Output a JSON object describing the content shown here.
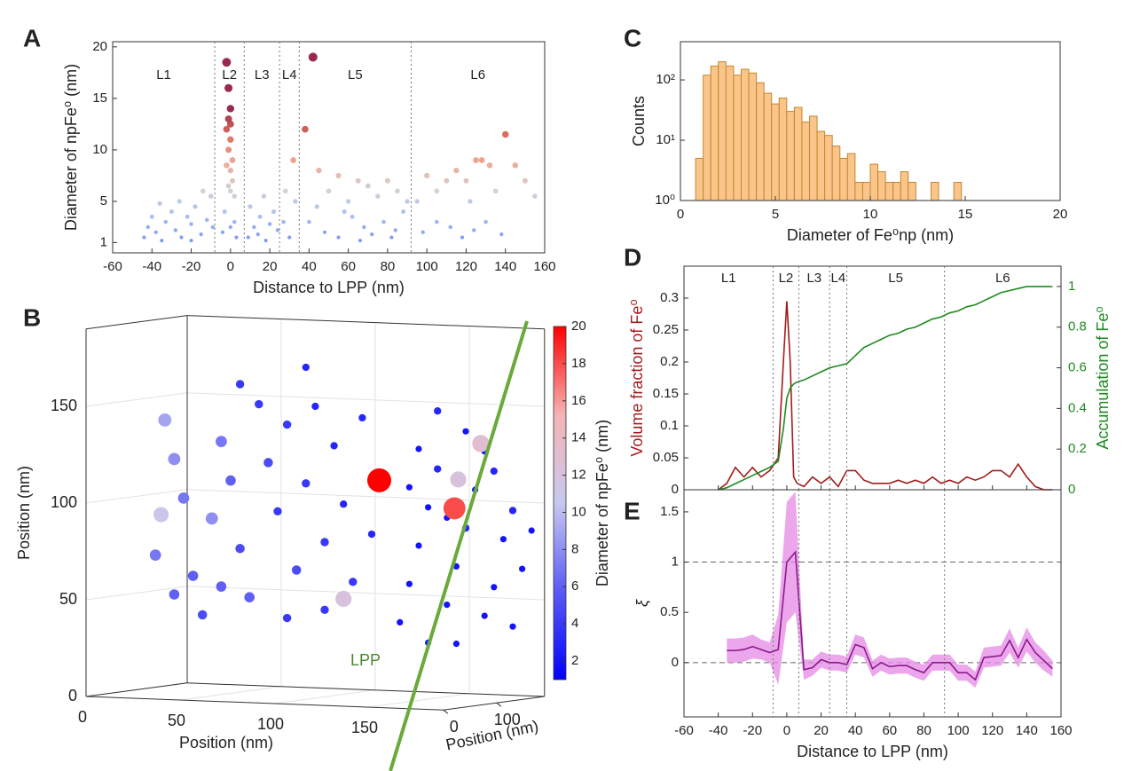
{
  "chart_data": [
    {
      "type": "scatter",
      "panel": "A",
      "xlabel": "Distance to LPP (nm)",
      "ylabel": "Diameter of npFe⁰ (nm)",
      "xlim": [
        -60,
        160
      ],
      "xticks": [
        -60,
        -40,
        -20,
        0,
        20,
        40,
        60,
        80,
        100,
        120,
        140,
        160
      ],
      "ylim": [
        0,
        20.5
      ],
      "yticks": [
        1,
        5,
        10,
        15,
        20
      ],
      "regions": {
        "boundaries": [
          -8,
          7,
          25,
          35,
          92
        ],
        "labels": [
          "L1",
          "L2",
          "L3",
          "L4",
          "L5",
          "L6"
        ]
      },
      "colormap": {
        "colors": [
          "#6a8cf0",
          "#9fb8f2",
          "#cfcfcf",
          "#ee9e8a",
          "#d9614f",
          "#8e1338"
        ],
        "range": [
          1,
          14
        ]
      },
      "x": [
        -44,
        -42,
        -40,
        -38,
        -35,
        -33,
        -30,
        -28,
        -25,
        -22,
        -20,
        -18,
        -15,
        -12,
        -10,
        -9,
        -36,
        -26,
        -14,
        -20,
        -2,
        -1,
        0,
        -1,
        0,
        -2,
        0,
        -1,
        1,
        -2,
        0,
        1,
        -1,
        0,
        2,
        -3,
        2,
        -4,
        3,
        0,
        9,
        12,
        15,
        18,
        20,
        22,
        14,
        24,
        10,
        17,
        27,
        30,
        33,
        28,
        32,
        42,
        38,
        45,
        50,
        55,
        60,
        65,
        70,
        75,
        80,
        85,
        90,
        40,
        48,
        55,
        62,
        68,
        72,
        78,
        84,
        88,
        44,
        58,
        66,
        82,
        95,
        100,
        105,
        110,
        115,
        120,
        125,
        128,
        132,
        140,
        145,
        150,
        155,
        98,
        105,
        112,
        118,
        124,
        130,
        138,
        122,
        135
      ],
      "y": [
        1.5,
        2.5,
        3.5,
        2,
        1.2,
        3,
        4,
        2.2,
        1.5,
        3.5,
        2.8,
        4.5,
        1.8,
        3.2,
        5.5,
        2.5,
        4.8,
        5,
        6,
        1.2,
        18.5,
        16,
        14,
        13,
        12.5,
        12,
        11,
        10,
        9,
        8.5,
        8,
        7,
        6.5,
        6,
        5.5,
        4,
        3,
        2,
        1.5,
        2.5,
        1.5,
        2.5,
        3.5,
        1.2,
        2.8,
        4,
        1.8,
        2.2,
        4.5,
        5.5,
        3,
        1.5,
        5,
        6,
        9,
        19,
        12,
        8,
        6,
        7.5,
        5,
        7,
        6.5,
        5.5,
        7,
        6,
        5,
        3,
        2,
        1.5,
        3.5,
        2.5,
        1.8,
        3,
        2.2,
        4,
        4.5,
        4,
        1.2,
        1.5,
        5,
        7.5,
        6,
        7,
        8,
        7,
        9,
        9,
        8.5,
        11.5,
        8.5,
        7,
        5.5,
        2,
        3,
        2.5,
        1.5,
        2.2,
        3,
        1.8,
        5,
        6
      ]
    },
    {
      "type": "scatter3d",
      "panel": "B",
      "xlabel": "Position (nm)",
      "ylabel": "Position (nm)",
      "zlabel": "Position (nm)",
      "xlim": [
        0,
        190
      ],
      "xticks": [
        0,
        50,
        100,
        150
      ],
      "ylim": [
        0,
        190
      ],
      "yticks": [
        0,
        100
      ],
      "zlim": [
        0,
        190
      ],
      "zticks": [
        0,
        50,
        100,
        150
      ],
      "annotation": "LPP",
      "colorbar": {
        "label": "Diameter of npFe⁰ (nm)",
        "clim": [
          1,
          20
        ],
        "ticks": [
          2,
          4,
          6,
          8,
          10,
          12,
          14,
          16,
          18,
          20
        ],
        "colors": [
          "#0000ff",
          "#5a5af5",
          "#c8c8f0",
          "#f5b4b4",
          "#ff0000"
        ]
      },
      "x": [
        15,
        20,
        25,
        10,
        30,
        40,
        45,
        50,
        55,
        60,
        70,
        75,
        80,
        85,
        90,
        95,
        100,
        105,
        110,
        115,
        120,
        125,
        35,
        65,
        90,
        20,
        55,
        100,
        80,
        45,
        140,
        145,
        150,
        155,
        160,
        165,
        170,
        175,
        180,
        185,
        150,
        160,
        145,
        170,
        190,
        195,
        200,
        205,
        200,
        185,
        155,
        165,
        175,
        190,
        210,
        129,
        169,
        13,
        110,
        183,
        171
      ],
      "z": [
        140,
        120,
        100,
        70,
        60,
        90,
        130,
        110,
        75,
        50,
        120,
        95,
        140,
        65,
        110,
        150,
        80,
        130,
        100,
        60,
        145,
        85,
        40,
        150,
        170,
        50,
        160,
        45,
        40,
        55,
        40,
        60,
        80,
        100,
        120,
        50,
        70,
        90,
        110,
        130,
        130,
        150,
        110,
        30,
        60,
        85,
        100,
        70,
        40,
        45,
        30,
        95,
        140,
        120,
        90,
        113,
        100,
        91,
        51,
        134,
        115
      ],
      "size": [
        9,
        8,
        7,
        7,
        6,
        8,
        7,
        6,
        5,
        6,
        5,
        4,
        4,
        5,
        4,
        3,
        4,
        3,
        3,
        4,
        3,
        3,
        5,
        4,
        3,
        6,
        4,
        4,
        4,
        6,
        2,
        2,
        2,
        2,
        3,
        2,
        2,
        3,
        2,
        2,
        2,
        3,
        2,
        2,
        2,
        2,
        3,
        2,
        2,
        2,
        2,
        2,
        2,
        3,
        2,
        20,
        18,
        11,
        12,
        13,
        12
      ]
    },
    {
      "type": "histogram",
      "panel": "C",
      "xlabel": "Diameter of Fe⁰np (nm)",
      "ylabel": "Counts",
      "color": "#f9c58a",
      "edge_color": "#c8862a",
      "bins": [
        0.8,
        1.2,
        1.6,
        2,
        2.4,
        2.8,
        3.2,
        3.6,
        4,
        4.4,
        4.8,
        5.2,
        5.6,
        6,
        6.4,
        6.8,
        7.2,
        7.6,
        8,
        8.4,
        8.8,
        9.2,
        9.6,
        10,
        10.4,
        10.8,
        11.2,
        11.6,
        12,
        12.4,
        12.8,
        13.2,
        13.6,
        14,
        14.4,
        14.8,
        15.2,
        15.6,
        16,
        16.4,
        16.8,
        17.2,
        17.6,
        18,
        18.4,
        18.8,
        19.2
      ],
      "counts": [
        5,
        120,
        170,
        200,
        170,
        120,
        150,
        130,
        90,
        60,
        40,
        50,
        30,
        35,
        20,
        25,
        14,
        12,
        8,
        5,
        6,
        2,
        2,
        4,
        3,
        2,
        2,
        3,
        2,
        1,
        1,
        2,
        1,
        1,
        2,
        0,
        0,
        1,
        0,
        0,
        0,
        0,
        0,
        0,
        0,
        1,
        1
      ],
      "xlim": [
        0,
        20
      ],
      "xticks": [
        0,
        5,
        10,
        15,
        20
      ],
      "log_y": true,
      "ylim": [
        1,
        430
      ],
      "yticks": [
        {
          "value": 1,
          "label": "10⁰"
        },
        {
          "value": 10,
          "label": "10¹"
        },
        {
          "value": 100,
          "label": "10²"
        }
      ]
    },
    {
      "type": "line",
      "panel": "D",
      "xtick_labels": false,
      "x": [
        -40,
        -35,
        -30,
        -25,
        -20,
        -15,
        -10,
        -5,
        -2,
        0,
        2,
        4,
        6,
        10,
        15,
        20,
        25,
        30,
        35,
        40,
        45,
        50,
        55,
        60,
        65,
        70,
        75,
        80,
        85,
        90,
        95,
        100,
        105,
        110,
        115,
        120,
        125,
        130,
        135,
        140,
        145,
        150,
        155
      ],
      "series": [
        {
          "name": "Volume fraction of Fe⁰",
          "color": "#a01c1c",
          "values": [
            0,
            0.01,
            0.035,
            0.02,
            0.035,
            0.02,
            0.03,
            0.05,
            0.2,
            0.295,
            0.2,
            0.02,
            0.01,
            0.005,
            0.02,
            0.01,
            0.02,
            0.005,
            0.03,
            0.03,
            0.015,
            0.01,
            0.01,
            0.01,
            0.015,
            0.01,
            0.015,
            0.01,
            0.02,
            0.01,
            0.015,
            0.01,
            0.02,
            0.015,
            0.02,
            0.03,
            0.03,
            0.02,
            0.04,
            0.02,
            0.005,
            0,
            0
          ]
        },
        {
          "name": "Accumulation of Fe⁰",
          "color": "#1e8a1e",
          "axis": "y2",
          "values": [
            0,
            0.01,
            0.03,
            0.05,
            0.07,
            0.09,
            0.11,
            0.14,
            0.3,
            0.45,
            0.5,
            0.52,
            0.53,
            0.54,
            0.56,
            0.58,
            0.6,
            0.61,
            0.62,
            0.66,
            0.7,
            0.72,
            0.74,
            0.76,
            0.77,
            0.79,
            0.8,
            0.82,
            0.84,
            0.85,
            0.87,
            0.88,
            0.9,
            0.91,
            0.93,
            0.95,
            0.97,
            0.98,
            0.99,
            1.0,
            1.0,
            1.0,
            1.0
          ]
        }
      ],
      "xlim": [
        -60,
        160
      ],
      "xticks": [
        -60,
        -40,
        -20,
        0,
        20,
        40,
        60,
        80,
        100,
        120,
        140,
        160
      ],
      "ylim": [
        0,
        0.35
      ],
      "yticks": [
        0,
        0.05,
        0.1,
        0.15,
        0.2,
        0.25,
        0.3
      ],
      "y2lim": [
        0,
        1.1
      ],
      "y2ticks": [
        0,
        0.2,
        0.4,
        0.6,
        0.8,
        1
      ],
      "regions": {
        "boundaries": [
          -8,
          7,
          25,
          35,
          92
        ],
        "labels": [
          "L1",
          "L2",
          "L3",
          "L4",
          "L5",
          "L6"
        ]
      }
    },
    {
      "type": "line",
      "panel": "E",
      "xlabel": "Distance to LPP (nm)",
      "ylabel": "ξ",
      "x": [
        -35,
        -30,
        -25,
        -20,
        -15,
        -10,
        -5,
        0,
        5,
        10,
        15,
        20,
        25,
        30,
        35,
        40,
        45,
        50,
        55,
        60,
        65,
        70,
        75,
        80,
        85,
        90,
        95,
        100,
        105,
        110,
        115,
        120,
        125,
        130,
        135,
        140,
        145,
        150,
        155
      ],
      "series": [
        {
          "color": "#8b1a8b",
          "band_color": "#e58ae5",
          "values": [
            0.12,
            0.12,
            0.13,
            0.16,
            0.13,
            0.1,
            0.13,
            1.0,
            1.1,
            -0.07,
            -0.05,
            0.03,
            0,
            0,
            -0.02,
            0.18,
            0.15,
            -0.06,
            0,
            -0.04,
            -0.03,
            -0.03,
            -0.07,
            -0.1,
            0,
            0,
            0,
            -0.1,
            -0.1,
            -0.17,
            0.05,
            0.06,
            0.07,
            0.22,
            0.05,
            0.23,
            0.1,
            0.02,
            -0.06
          ],
          "error": [
            0.12,
            0.12,
            0.12,
            0.12,
            0.1,
            0.1,
            0.35,
            0.6,
            0.6,
            0.1,
            0.08,
            0.08,
            0.08,
            0.08,
            0.08,
            0.1,
            0.1,
            0.08,
            0.08,
            0.08,
            0.08,
            0.08,
            0.08,
            0.08,
            0.08,
            0.08,
            0.08,
            0.08,
            0.08,
            0.08,
            0.1,
            0.1,
            0.1,
            0.12,
            0.1,
            0.12,
            0.1,
            0.1,
            0.08
          ]
        }
      ],
      "xlim": [
        -60,
        160
      ],
      "xticks": [
        -60,
        -40,
        -20,
        0,
        20,
        40,
        60,
        80,
        100,
        120,
        140,
        160
      ],
      "ylim": [
        -0.54,
        1.72
      ],
      "yticks": [
        0,
        0.5,
        1,
        1.5
      ],
      "ref_lines": [
        0,
        1
      ],
      "regions": {
        "boundaries": [
          -8,
          7,
          25,
          35,
          92
        ]
      }
    }
  ]
}
